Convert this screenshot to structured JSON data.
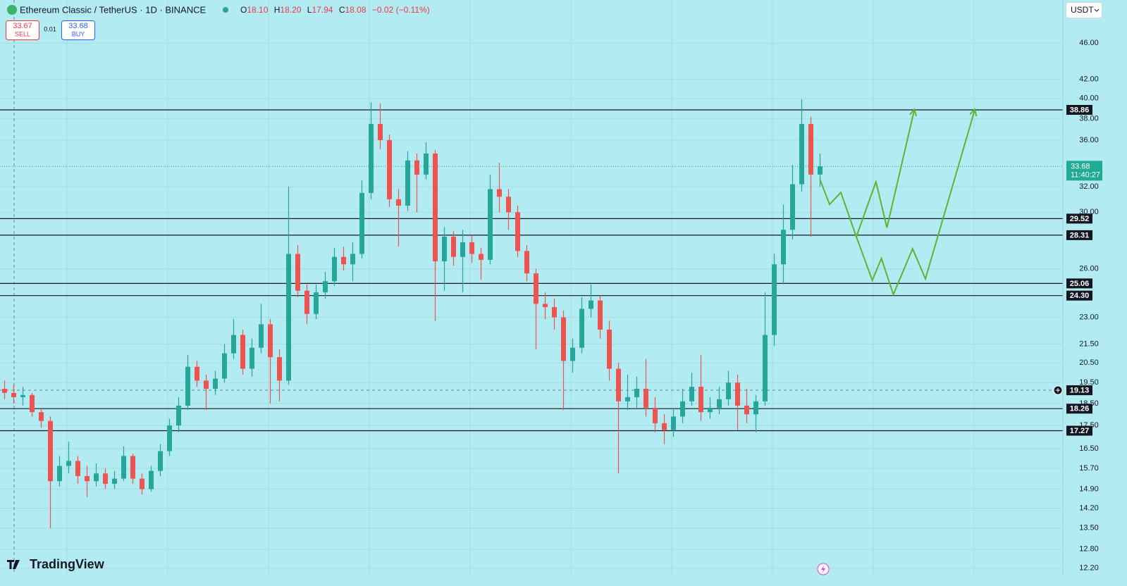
{
  "header": {
    "symbol": "Ethereum Classic / TetherUS · 1D · BINANCE",
    "ohlc": [
      {
        "key": "O",
        "value": "18.10"
      },
      {
        "key": "H",
        "value": "18.20"
      },
      {
        "key": "L",
        "value": "17.94"
      },
      {
        "key": "C",
        "value": "18.08"
      }
    ],
    "change": "−0.02 (−0.11%)"
  },
  "trade": {
    "sell_price": "33.67",
    "sell": "SELL",
    "spread": "0.01",
    "buy_price": "33.68",
    "buy": "BUY"
  },
  "currency": "USDT",
  "brand": "TradingView",
  "chart_data": {
    "type": "candlestick",
    "y_scale": "log",
    "ylim": [
      12.0,
      51.3
    ],
    "xlim": [
      -0.5,
      115.5
    ],
    "yticks": [
      {
        "value": 46,
        "label": "46.00"
      },
      {
        "value": 42,
        "label": "42.00"
      },
      {
        "value": 40,
        "label": "40.00"
      },
      {
        "value": 38,
        "label": "38.00"
      },
      {
        "value": 36,
        "label": "36.00"
      },
      {
        "value": 32,
        "label": "32.00"
      },
      {
        "value": 30,
        "label": "30.00"
      },
      {
        "value": 26,
        "label": "26.00"
      },
      {
        "value": 23,
        "label": "23.00"
      },
      {
        "value": 21.5,
        "label": "21.50"
      },
      {
        "value": 20.5,
        "label": "20.50"
      },
      {
        "value": 19.5,
        "label": "19.50"
      },
      {
        "value": 18.5,
        "label": "18.50"
      },
      {
        "value": 17.5,
        "label": "17.50"
      },
      {
        "value": 16.5,
        "label": "16.50"
      },
      {
        "value": 15.7,
        "label": "15.70"
      },
      {
        "value": 14.9,
        "label": "14.90"
      },
      {
        "value": 14.2,
        "label": "14.20"
      },
      {
        "value": 13.5,
        "label": "13.50"
      },
      {
        "value": 12.8,
        "label": "12.80"
      },
      {
        "value": 12.2,
        "label": "12.20"
      }
    ],
    "grid": true,
    "up_color": "#26a69a",
    "down_color": "#ef5350",
    "candles": [
      [
        19.2,
        19.6,
        18.7,
        19.0
      ],
      [
        19.0,
        19.4,
        18.5,
        18.8
      ],
      [
        18.8,
        19.3,
        18.4,
        18.9
      ],
      [
        18.9,
        19.0,
        17.9,
        18.1
      ],
      [
        18.1,
        18.3,
        17.4,
        17.7
      ],
      [
        17.7,
        17.9,
        13.5,
        15.2
      ],
      [
        15.2,
        16.2,
        15.0,
        15.8
      ],
      [
        15.8,
        16.8,
        15.5,
        16.0
      ],
      [
        16.0,
        16.2,
        15.1,
        15.4
      ],
      [
        15.4,
        15.8,
        14.6,
        15.2
      ],
      [
        15.2,
        15.9,
        15.0,
        15.5
      ],
      [
        15.5,
        15.7,
        14.9,
        15.1
      ],
      [
        15.1,
        15.6,
        14.9,
        15.3
      ],
      [
        15.3,
        16.6,
        15.2,
        16.2
      ],
      [
        16.2,
        16.3,
        15.1,
        15.3
      ],
      [
        15.3,
        15.5,
        14.7,
        14.9
      ],
      [
        14.9,
        15.8,
        14.8,
        15.6
      ],
      [
        15.6,
        16.7,
        15.4,
        16.4
      ],
      [
        16.4,
        17.8,
        16.2,
        17.5
      ],
      [
        17.5,
        18.8,
        17.2,
        18.4
      ],
      [
        18.4,
        20.9,
        18.2,
        20.3
      ],
      [
        20.3,
        20.6,
        19.3,
        19.6
      ],
      [
        19.6,
        19.9,
        18.2,
        19.2
      ],
      [
        19.2,
        20.1,
        18.9,
        19.7
      ],
      [
        19.7,
        21.5,
        19.5,
        21.0
      ],
      [
        21.0,
        22.9,
        20.7,
        22.0
      ],
      [
        22.0,
        22.3,
        19.9,
        20.2
      ],
      [
        20.2,
        21.8,
        19.8,
        21.3
      ],
      [
        21.3,
        23.8,
        21.0,
        22.6
      ],
      [
        22.6,
        22.9,
        18.5,
        20.8
      ],
      [
        20.8,
        21.2,
        18.6,
        19.6
      ],
      [
        19.6,
        32.0,
        19.4,
        27.0
      ],
      [
        27.0,
        27.6,
        24.2,
        24.6
      ],
      [
        24.6,
        25.0,
        22.6,
        23.2
      ],
      [
        23.2,
        25.0,
        22.9,
        24.5
      ],
      [
        24.5,
        25.8,
        24.1,
        25.2
      ],
      [
        25.2,
        27.4,
        24.9,
        26.8
      ],
      [
        26.8,
        27.5,
        25.9,
        26.3
      ],
      [
        26.3,
        27.8,
        25.2,
        27.0
      ],
      [
        27.0,
        32.5,
        26.7,
        31.5
      ],
      [
        31.5,
        39.6,
        31.0,
        37.5
      ],
      [
        37.5,
        39.5,
        35.2,
        36.0
      ],
      [
        36.0,
        36.5,
        30.4,
        31.0
      ],
      [
        31.0,
        31.8,
        27.5,
        30.5
      ],
      [
        30.5,
        35.0,
        30.1,
        34.2
      ],
      [
        34.2,
        34.8,
        30.0,
        33.0
      ],
      [
        33.0,
        35.8,
        32.6,
        34.8
      ],
      [
        34.8,
        35.1,
        22.8,
        26.5
      ],
      [
        26.5,
        28.9,
        24.6,
        28.2
      ],
      [
        28.2,
        28.6,
        26.2,
        26.8
      ],
      [
        26.8,
        28.7,
        24.5,
        27.8
      ],
      [
        27.8,
        28.3,
        26.4,
        27.0
      ],
      [
        27.0,
        27.4,
        25.3,
        26.6
      ],
      [
        26.6,
        33.0,
        26.3,
        31.8
      ],
      [
        31.8,
        34.0,
        30.0,
        31.2
      ],
      [
        31.2,
        31.8,
        28.7,
        30.0
      ],
      [
        30.0,
        30.5,
        26.8,
        27.2
      ],
      [
        27.2,
        27.6,
        25.2,
        25.7
      ],
      [
        25.7,
        26.0,
        21.2,
        23.8
      ],
      [
        23.8,
        24.5,
        22.9,
        23.6
      ],
      [
        23.6,
        24.1,
        22.3,
        23.0
      ],
      [
        23.0,
        23.4,
        18.2,
        20.6
      ],
      [
        20.6,
        21.8,
        20.0,
        21.3
      ],
      [
        21.3,
        24.2,
        21.0,
        23.5
      ],
      [
        23.5,
        25.0,
        23.0,
        24.0
      ],
      [
        24.0,
        24.3,
        21.8,
        22.3
      ],
      [
        22.3,
        22.8,
        19.6,
        20.2
      ],
      [
        20.2,
        20.5,
        15.5,
        18.6
      ],
      [
        18.6,
        19.9,
        18.2,
        18.8
      ],
      [
        18.8,
        19.8,
        18.3,
        19.2
      ],
      [
        19.2,
        20.7,
        17.9,
        18.3
      ],
      [
        18.3,
        18.8,
        17.2,
        17.6
      ],
      [
        17.6,
        18.0,
        16.7,
        17.3
      ],
      [
        17.3,
        18.3,
        17.0,
        17.9
      ],
      [
        17.9,
        19.2,
        17.6,
        18.6
      ],
      [
        18.6,
        20.0,
        18.4,
        19.3
      ],
      [
        19.3,
        20.9,
        17.7,
        18.1
      ],
      [
        18.1,
        18.8,
        17.8,
        18.3
      ],
      [
        18.3,
        19.3,
        18.0,
        18.7
      ],
      [
        18.7,
        20.1,
        18.4,
        19.5
      ],
      [
        19.5,
        19.9,
        17.3,
        18.4
      ],
      [
        18.4,
        19.2,
        17.6,
        18.0
      ],
      [
        18.0,
        18.9,
        17.2,
        18.6
      ],
      [
        18.6,
        24.5,
        18.4,
        22.0
      ],
      [
        22.0,
        27.0,
        21.4,
        26.3
      ],
      [
        26.3,
        30.6,
        25.0,
        28.7
      ],
      [
        28.7,
        33.8,
        28.0,
        32.2
      ],
      [
        32.2,
        39.9,
        31.6,
        37.5
      ],
      [
        37.5,
        38.2,
        28.2,
        33.0
      ],
      [
        33.0,
        34.8,
        32.0,
        33.68
      ]
    ],
    "levels": [
      38.86,
      29.52,
      28.31,
      25.06,
      24.3,
      18.26,
      17.27
    ],
    "level_labels": [
      "38.86",
      "29.52",
      "28.31",
      "25.06",
      "24.30",
      "18.26",
      "17.27"
    ],
    "current_price": 33.68,
    "countdown": "11:40:27",
    "crosshair": 19.13,
    "projections": [
      {
        "color": "#5cb531",
        "x": [
          89,
          90.04,
          91.27,
          92.96,
          95.1,
          96.3,
          99.3
        ],
        "y": [
          32.57,
          30.6,
          31.54,
          28.2,
          32.4,
          28.86,
          38.91
        ]
      },
      {
        "color": "#5cb531",
        "x": [
          92.96,
          94.7,
          95.7,
          97,
          99.1,
          100.5,
          105.9
        ],
        "y": [
          28.2,
          25.26,
          26.69,
          24.37,
          27.36,
          25.35,
          38.91
        ]
      }
    ]
  }
}
